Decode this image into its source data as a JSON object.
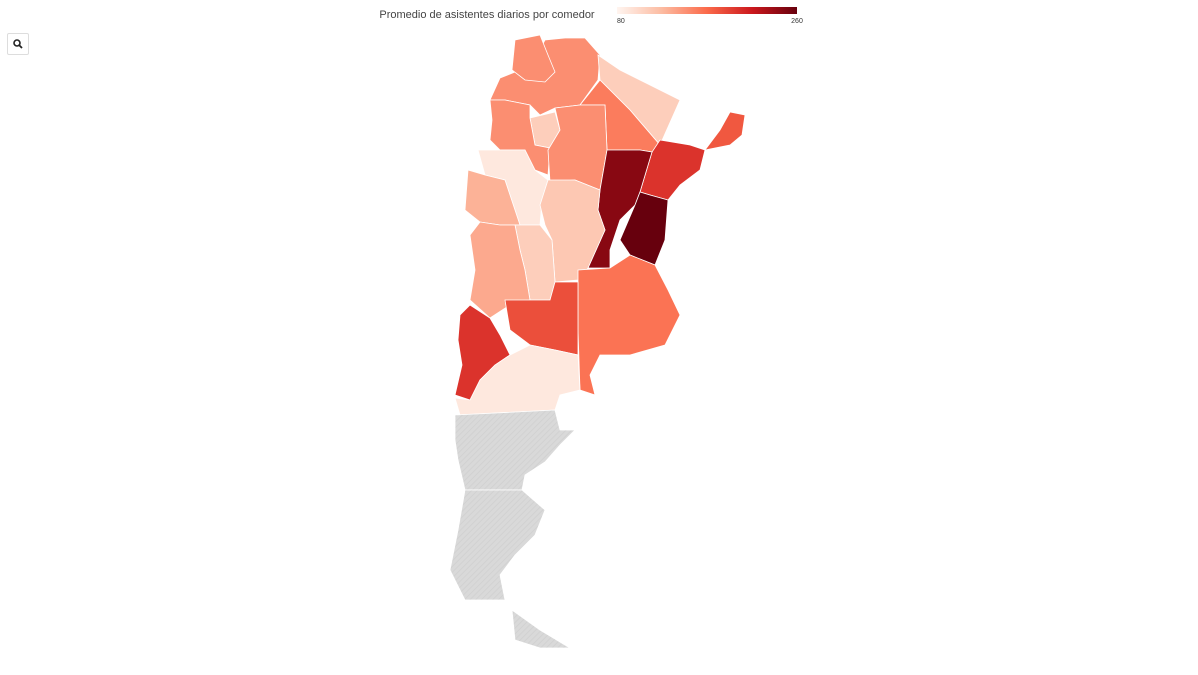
{
  "chart_data": {
    "type": "choropleth",
    "title": "Promedio de asistentes diarios por comedor",
    "range": [
      80,
      260
    ],
    "colors": [
      "#fff5f0",
      "#fcbba1",
      "#fb6a4a",
      "#cb181d",
      "#67000d"
    ],
    "no_data_color": "#d9d9d9",
    "values": [
      150,
      150,
      110,
      160,
      110,
      150,
      150,
      180,
      200,
      245,
      260,
      90,
      115,
      130,
      110,
      135,
      165,
      185,
      200,
      90,
      null,
      null,
      null
    ]
  }
}
